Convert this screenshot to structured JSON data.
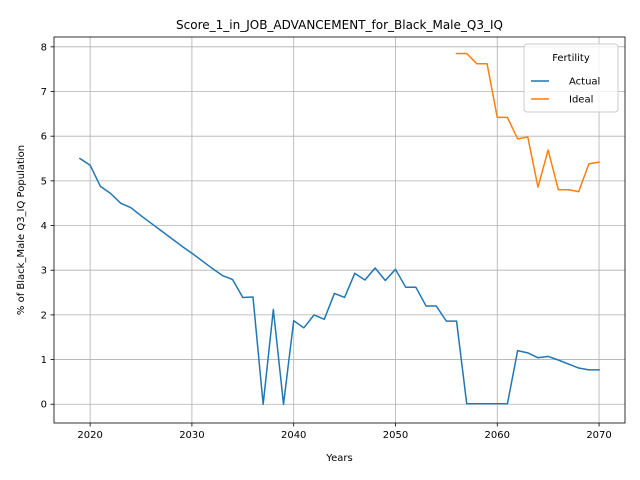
{
  "chart_data": {
    "type": "line",
    "title": "Score_1_in_JOB_ADVANCEMENT_for_Black_Male_Q3_IQ",
    "xlabel": "Years",
    "ylabel": "% of Black_Male Q3_IQ Population",
    "xlim": [
      2016.45,
      2072.55
    ],
    "ylim": [
      -0.42,
      8.22
    ],
    "xticks": [
      2020,
      2030,
      2040,
      2050,
      2060,
      2070
    ],
    "yticks": [
      0,
      1,
      2,
      3,
      4,
      5,
      6,
      7,
      8
    ],
    "grid": true,
    "legend": {
      "title": "Fertility",
      "placement": "top-right"
    },
    "series": [
      {
        "name": "Actual",
        "color": "#1f77b4",
        "x": [
          2019,
          2020,
          2021,
          2022,
          2023,
          2024,
          2025,
          2026,
          2027,
          2028,
          2029,
          2030,
          2031,
          2032,
          2033,
          2034,
          2035,
          2036,
          2037,
          2038,
          2039,
          2040,
          2041,
          2042,
          2043,
          2044,
          2045,
          2046,
          2047,
          2048,
          2049,
          2050,
          2051,
          2052,
          2053,
          2054,
          2055,
          2056,
          2057,
          2058,
          2059,
          2060,
          2061,
          2062,
          2063,
          2064,
          2065,
          2066,
          2067,
          2068,
          2069,
          2070
        ],
        "y": [
          5.5,
          5.35,
          4.88,
          4.72,
          4.5,
          4.4,
          4.22,
          4.05,
          3.88,
          3.71,
          3.54,
          3.38,
          3.21,
          3.04,
          2.88,
          2.79,
          2.39,
          2.4,
          0.0,
          2.12,
          0.0,
          1.87,
          1.71,
          2.0,
          1.9,
          2.48,
          2.39,
          2.93,
          2.78,
          3.05,
          2.77,
          3.02,
          2.62,
          2.62,
          2.2,
          2.2,
          1.86,
          1.86,
          0.01,
          0.01,
          0.01,
          0.01,
          0.01,
          1.2,
          1.15,
          1.04,
          1.07,
          0.99,
          0.9,
          0.81,
          0.77,
          0.77
        ]
      },
      {
        "name": "Ideal",
        "color": "#ff7f0e",
        "x": [
          2056,
          2057,
          2058,
          2059,
          2060,
          2061,
          2062,
          2063,
          2064,
          2065,
          2066,
          2067,
          2068,
          2069,
          2070
        ],
        "y": [
          7.85,
          7.85,
          7.62,
          7.62,
          6.42,
          6.42,
          5.94,
          5.98,
          4.86,
          5.69,
          4.8,
          4.8,
          4.76,
          5.38,
          5.42
        ]
      }
    ]
  }
}
